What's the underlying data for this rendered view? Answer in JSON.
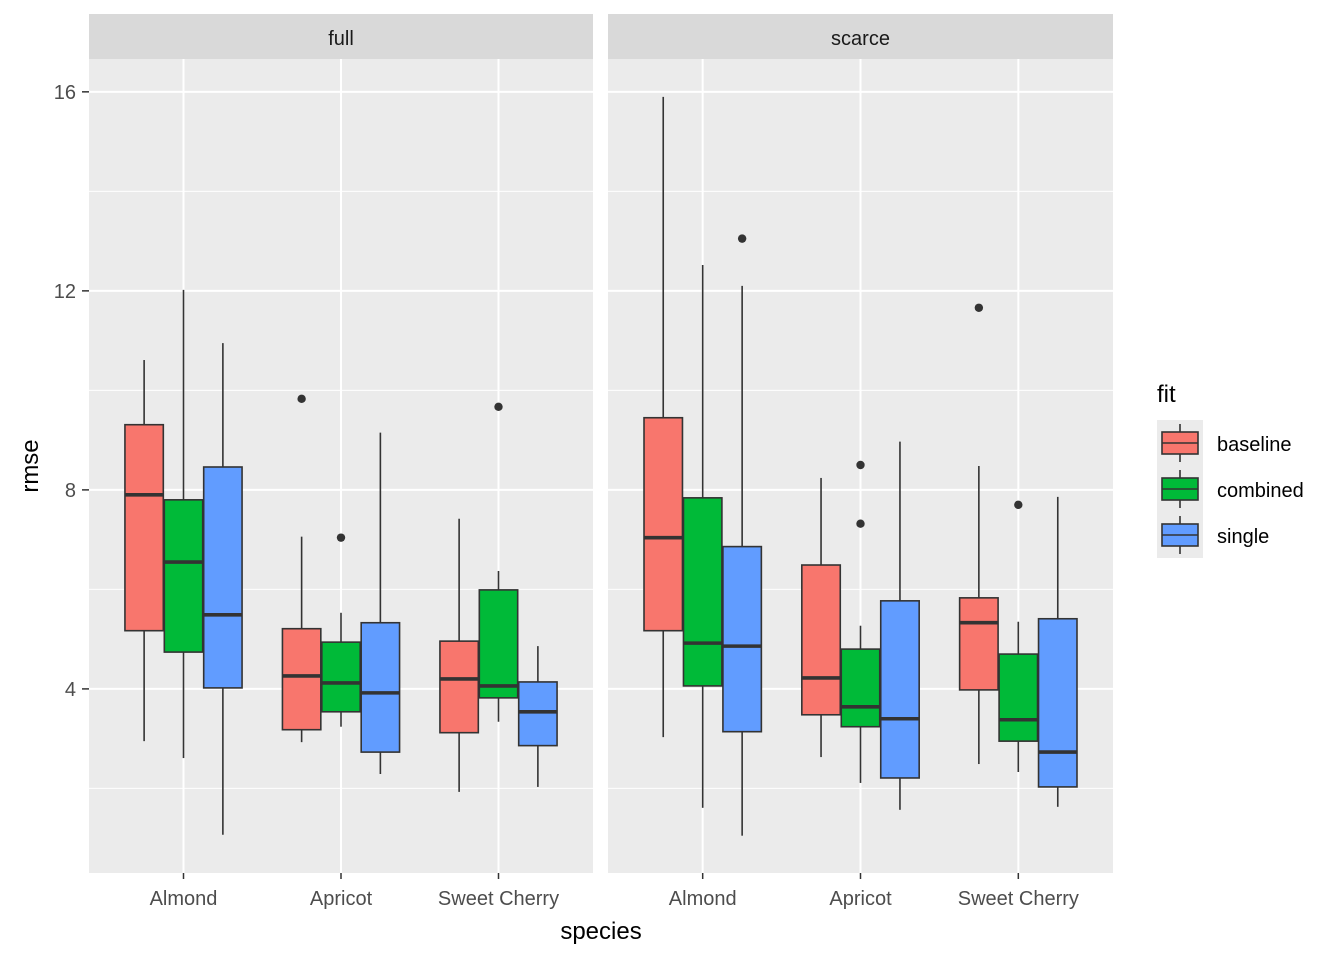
{
  "chart_data": {
    "type": "boxplot",
    "xlabel": "species",
    "ylabel": "rmse",
    "ylim": [
      0.3,
      16.66
    ],
    "y_major_ticks": [
      4,
      8,
      12,
      16
    ],
    "y_minor_ticks": [
      2,
      6,
      10,
      14
    ],
    "grid": true,
    "categories": [
      "Almond",
      "Apricot",
      "Sweet Cherry"
    ],
    "legend": {
      "title": "fit",
      "position": "right",
      "entries": [
        {
          "name": "baseline",
          "color": "#F8766D"
        },
        {
          "name": "combined",
          "color": "#00BA38"
        },
        {
          "name": "single",
          "color": "#619CFF"
        }
      ]
    },
    "facets": [
      {
        "label": "full",
        "groups": [
          {
            "category": "Almond",
            "boxes": [
              {
                "fit": "baseline",
                "lower": 2.95,
                "q1": 5.17,
                "median": 7.9,
                "q3": 9.31,
                "upper": 10.61,
                "outliers": []
              },
              {
                "fit": "combined",
                "lower": 2.61,
                "q1": 4.74,
                "median": 6.55,
                "q3": 7.8,
                "upper": 12.02,
                "outliers": []
              },
              {
                "fit": "single",
                "lower": 1.07,
                "q1": 4.02,
                "median": 5.49,
                "q3": 8.46,
                "upper": 10.95,
                "outliers": []
              }
            ]
          },
          {
            "category": "Apricot",
            "boxes": [
              {
                "fit": "baseline",
                "lower": 2.93,
                "q1": 3.18,
                "median": 4.26,
                "q3": 5.21,
                "upper": 7.06,
                "outliers": [
                  9.83
                ]
              },
              {
                "fit": "combined",
                "lower": 3.24,
                "q1": 3.54,
                "median": 4.12,
                "q3": 4.94,
                "upper": 5.53,
                "outliers": [
                  7.04
                ]
              },
              {
                "fit": "single",
                "lower": 2.29,
                "q1": 2.73,
                "median": 3.92,
                "q3": 5.33,
                "upper": 9.15,
                "outliers": []
              }
            ]
          },
          {
            "category": "Sweet Cherry",
            "boxes": [
              {
                "fit": "baseline",
                "lower": 1.93,
                "q1": 3.12,
                "median": 4.2,
                "q3": 4.96,
                "upper": 7.42,
                "outliers": []
              },
              {
                "fit": "combined",
                "lower": 3.34,
                "q1": 3.82,
                "median": 4.06,
                "q3": 5.99,
                "upper": 6.37,
                "outliers": [
                  9.67
                ]
              },
              {
                "fit": "single",
                "lower": 2.03,
                "q1": 2.86,
                "median": 3.54,
                "q3": 4.14,
                "upper": 4.86,
                "outliers": []
              }
            ]
          }
        ]
      },
      {
        "label": "scarce",
        "groups": [
          {
            "category": "Almond",
            "boxes": [
              {
                "fit": "baseline",
                "lower": 3.03,
                "q1": 5.17,
                "median": 7.04,
                "q3": 9.45,
                "upper": 15.9,
                "outliers": []
              },
              {
                "fit": "combined",
                "lower": 1.61,
                "q1": 4.06,
                "median": 4.92,
                "q3": 7.84,
                "upper": 12.52,
                "outliers": []
              },
              {
                "fit": "single",
                "lower": 1.05,
                "q1": 3.14,
                "median": 4.86,
                "q3": 6.86,
                "upper": 12.1,
                "outliers": [
                  13.05
                ]
              }
            ]
          },
          {
            "category": "Apricot",
            "boxes": [
              {
                "fit": "baseline",
                "lower": 2.63,
                "q1": 3.48,
                "median": 4.22,
                "q3": 6.49,
                "upper": 8.24,
                "outliers": []
              },
              {
                "fit": "combined",
                "lower": 2.11,
                "q1": 3.24,
                "median": 3.64,
                "q3": 4.8,
                "upper": 5.27,
                "outliers": [
                  8.5,
                  7.32
                ]
              },
              {
                "fit": "single",
                "lower": 1.57,
                "q1": 2.21,
                "median": 3.4,
                "q3": 5.77,
                "upper": 8.97,
                "outliers": []
              }
            ]
          },
          {
            "category": "Sweet Cherry",
            "boxes": [
              {
                "fit": "baseline",
                "lower": 2.49,
                "q1": 3.98,
                "median": 5.33,
                "q3": 5.83,
                "upper": 8.48,
                "outliers": [
                  11.66
                ]
              },
              {
                "fit": "combined",
                "lower": 2.33,
                "q1": 2.95,
                "median": 3.38,
                "q3": 4.7,
                "upper": 5.35,
                "outliers": [
                  7.7
                ]
              },
              {
                "fit": "single",
                "lower": 1.63,
                "q1": 2.03,
                "median": 2.73,
                "q3": 5.41,
                "upper": 7.86,
                "outliers": []
              }
            ]
          }
        ]
      }
    ]
  }
}
